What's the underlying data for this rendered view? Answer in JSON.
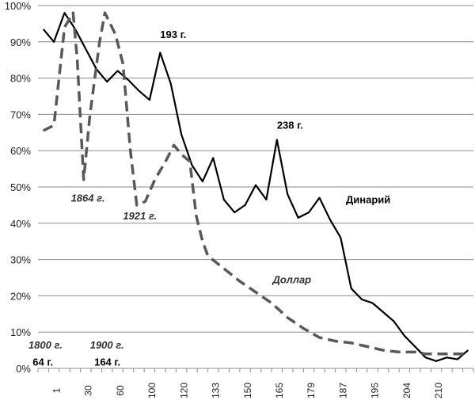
{
  "chart_data": {
    "type": "line",
    "x_categories": [
      "1",
      "30",
      "60",
      "100",
      "120",
      "133",
      "150",
      "165",
      "179",
      "187",
      "195",
      "204",
      "210"
    ],
    "ylim": [
      0,
      100
    ],
    "y_ticks": [
      "0%",
      "10%",
      "20%",
      "30%",
      "40%",
      "50%",
      "60%",
      "70%",
      "80%",
      "90%",
      "100%"
    ],
    "grid": true,
    "series": [
      {
        "name": "Динарий",
        "style": "solid",
        "color": "#000000",
        "points": [
          [
            0,
            93.5
          ],
          [
            1,
            90
          ],
          [
            2,
            98
          ],
          [
            3,
            93.5
          ],
          [
            4,
            88
          ],
          [
            5,
            82.5
          ],
          [
            6,
            79
          ],
          [
            7,
            82
          ],
          [
            8,
            79.5
          ],
          [
            9,
            76.5
          ],
          [
            10,
            74
          ],
          [
            11,
            87
          ],
          [
            12,
            78.5
          ],
          [
            13,
            64.5
          ],
          [
            14,
            56
          ],
          [
            15,
            51.5
          ],
          [
            16,
            58
          ],
          [
            17,
            46.5
          ],
          [
            18,
            43
          ],
          [
            19,
            45
          ],
          [
            20,
            50.5
          ],
          [
            21,
            46.5
          ],
          [
            22,
            63
          ],
          [
            23,
            48
          ],
          [
            24,
            41.5
          ],
          [
            25,
            43
          ],
          [
            26,
            47
          ],
          [
            27,
            41
          ],
          [
            28,
            36
          ],
          [
            29,
            22
          ],
          [
            30,
            19
          ],
          [
            31,
            18
          ],
          [
            32,
            15.5
          ],
          [
            33,
            13
          ],
          [
            34,
            9
          ],
          [
            35,
            6
          ],
          [
            36,
            3
          ],
          [
            37,
            2
          ],
          [
            38,
            3
          ],
          [
            39,
            2.5
          ],
          [
            40,
            5
          ]
        ]
      },
      {
        "name": "Доллар",
        "style": "dashed",
        "color": "#595959",
        "points": [
          [
            0,
            65.5
          ],
          [
            1,
            67
          ],
          [
            2,
            94
          ],
          [
            2.8,
            98
          ],
          [
            3.2,
            85
          ],
          [
            3.8,
            52
          ],
          [
            4.4,
            70
          ],
          [
            5.3,
            90
          ],
          [
            5.8,
            98
          ],
          [
            6.8,
            92
          ],
          [
            7.5,
            84
          ],
          [
            8.2,
            60
          ],
          [
            8.8,
            45
          ],
          [
            9.6,
            46
          ],
          [
            10.5,
            52
          ],
          [
            11.5,
            57
          ],
          [
            12.3,
            61.5
          ],
          [
            13,
            59
          ],
          [
            13.8,
            57
          ],
          [
            14.4,
            42
          ],
          [
            15,
            35
          ],
          [
            15.5,
            31
          ],
          [
            17,
            27.5
          ],
          [
            18.5,
            24
          ],
          [
            20,
            21
          ],
          [
            21.5,
            18
          ],
          [
            23,
            14
          ],
          [
            24.5,
            11
          ],
          [
            26,
            8.5
          ],
          [
            27.5,
            7.5
          ],
          [
            29,
            7
          ],
          [
            30.5,
            6
          ],
          [
            32,
            5
          ],
          [
            33.5,
            4.5
          ],
          [
            35,
            4.5
          ],
          [
            36,
            4
          ],
          [
            37.5,
            4
          ],
          [
            39,
            4
          ],
          [
            40,
            4
          ]
        ]
      }
    ],
    "annotations": [
      {
        "text": "193 г.",
        "style": "bold",
        "x": 11,
        "y": 91
      },
      {
        "text": "238 г.",
        "style": "bold",
        "x": 22,
        "y": 66
      },
      {
        "text": "Динарий",
        "style": "bold",
        "x": 28.5,
        "y": 45.5
      },
      {
        "text": "Доллар",
        "style": "italic",
        "x": 21.6,
        "y": 23.5
      },
      {
        "text": "1864 г.",
        "style": "italic",
        "x": 2.6,
        "y": 46
      },
      {
        "text": "1921 г.",
        "style": "italic",
        "x": 7.5,
        "y": 41
      },
      {
        "text": "1800 г.",
        "style": "italic",
        "x": -1.4,
        "y": 5.5
      },
      {
        "text": "1900 г.",
        "style": "italic",
        "x": 4.4,
        "y": 5.5
      },
      {
        "text": "64 г.",
        "style": "bold",
        "x": -1.0,
        "y": 0.8
      },
      {
        "text": "164 г.",
        "style": "bold",
        "x": 4.8,
        "y": 0.8
      }
    ]
  }
}
